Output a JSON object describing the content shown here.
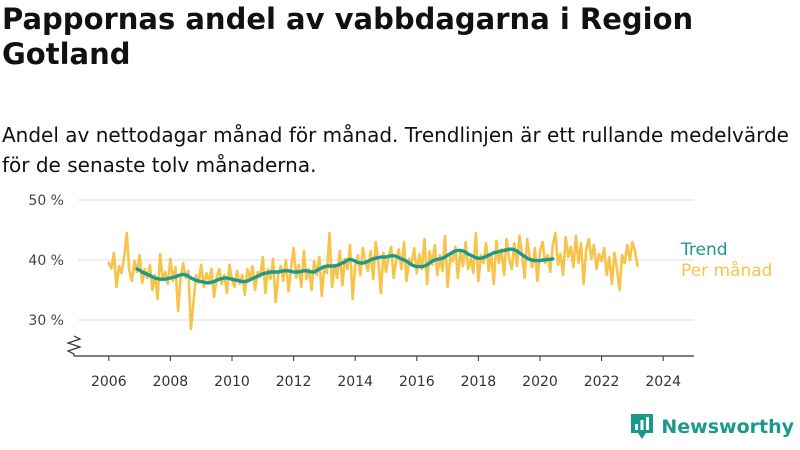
{
  "title": "Pappornas andel av vabbdagarna i Region Gotland",
  "subtitle": "Andel av nettodagar månad för månad. Trendlinjen är ett rullande medelvärde för de senaste tolv månaderna.",
  "brand": {
    "name": "Newsworthy",
    "logo_icon": "bar-chart-pin-icon",
    "color": "#1a9a8c"
  },
  "colors": {
    "monthly": "#f8c34a",
    "trend": "#1a9a8c",
    "grid": "#dddddd",
    "axis": "#333333"
  },
  "chart_data": {
    "type": "line",
    "title": "Pappornas andel av vabbdagarna i Region Gotland",
    "ylabel": "",
    "xlabel": "",
    "ylim": [
      24,
      52
    ],
    "xlim": [
      2005.0,
      2025.0
    ],
    "yticks": [
      30,
      40,
      50
    ],
    "ytick_labels": [
      "30 %",
      "40 %",
      "50 %"
    ],
    "xticks": [
      2006,
      2008,
      2010,
      2012,
      2014,
      2016,
      2018,
      2020,
      2022,
      2024
    ],
    "xtick_labels": [
      "2006",
      "2008",
      "2010",
      "2012",
      "2014",
      "2016",
      "2018",
      "2020",
      "2022",
      "2024"
    ],
    "grid": true,
    "broken_axis": true,
    "series": [
      {
        "name": "Per månad",
        "x_start": 2006.0,
        "step": 0.0833333,
        "values": [
          39.5,
          38.6,
          41.2,
          35.5,
          39.0,
          37.8,
          40.5,
          44.5,
          38.2,
          36.5,
          39.8,
          38.0,
          40.8,
          36.2,
          38.5,
          37.0,
          39.2,
          35.0,
          37.5,
          33.5,
          41.0,
          36.8,
          38.0,
          36.0,
          40.2,
          36.5,
          38.8,
          31.5,
          37.2,
          39.5,
          37.0,
          38.2,
          28.5,
          33.0,
          37.5,
          36.2,
          39.2,
          35.5,
          37.8,
          36.5,
          38.5,
          33.8,
          37.0,
          38.5,
          36.0,
          37.5,
          34.5,
          39.2,
          36.8,
          35.5,
          38.2,
          36.0,
          37.5,
          34.2,
          38.5,
          36.8,
          39.0,
          35.0,
          38.0,
          37.2,
          40.5,
          34.5,
          38.5,
          36.8,
          40.2,
          33.0,
          37.5,
          39.0,
          36.5,
          40.0,
          34.8,
          38.5,
          42.0,
          37.0,
          39.2,
          35.5,
          41.5,
          36.8,
          38.5,
          35.0,
          39.8,
          37.5,
          40.5,
          34.0,
          39.0,
          37.8,
          44.5,
          35.5,
          39.2,
          37.0,
          41.5,
          35.8,
          40.2,
          38.5,
          42.5,
          33.5,
          39.0,
          40.8,
          37.5,
          42.0,
          39.5,
          38.2,
          41.5,
          36.8,
          43.0,
          39.8,
          34.5,
          41.2,
          38.0,
          40.5,
          42.2,
          37.0,
          40.0,
          41.8,
          38.5,
          43.0,
          36.5,
          40.2,
          39.5,
          42.0,
          37.8,
          41.0,
          38.5,
          43.5,
          36.0,
          41.5,
          39.2,
          42.5,
          37.5,
          40.8,
          38.2,
          44.0,
          35.5,
          40.5,
          39.8,
          42.2,
          37.0,
          41.5,
          39.0,
          43.0,
          38.5,
          40.2,
          37.8,
          44.5,
          36.5,
          40.8,
          39.5,
          42.8,
          38.2,
          41.0,
          36.0,
          43.2,
          39.5,
          41.8,
          37.5,
          43.5,
          40.2,
          38.5,
          42.8,
          39.0,
          44.0,
          41.0,
          37.0,
          43.5,
          40.5,
          38.8,
          42.0,
          36.5,
          41.5,
          43.0,
          39.5,
          40.8,
          38.0,
          42.5,
          44.5,
          39.2,
          41.0,
          37.5,
          43.8,
          40.5,
          42.2,
          38.8,
          44.0,
          39.5,
          42.8,
          36.0,
          41.8,
          43.5,
          40.2,
          42.5,
          38.5,
          41.0,
          39.8,
          42.0,
          37.5,
          40.5,
          36.0,
          41.2,
          38.5,
          35.0,
          40.8,
          39.5,
          42.5,
          40.0,
          43.0,
          41.5,
          39.0
        ],
        "color": "#f8c34a"
      },
      {
        "name": "Trend",
        "x_start": 2006.9167,
        "step": 0.0833333,
        "values": [
          38.5,
          38.3,
          38.0,
          37.8,
          37.6,
          37.4,
          37.2,
          37.0,
          36.9,
          36.8,
          36.8,
          36.8,
          36.9,
          37.0,
          37.1,
          37.2,
          37.4,
          37.5,
          37.6,
          37.5,
          37.3,
          37.0,
          36.8,
          36.6,
          36.5,
          36.4,
          36.3,
          36.2,
          36.2,
          36.3,
          36.4,
          36.6,
          36.8,
          36.9,
          37.0,
          37.0,
          36.9,
          36.8,
          36.7,
          36.6,
          36.5,
          36.4,
          36.4,
          36.5,
          36.7,
          36.9,
          37.1,
          37.3,
          37.5,
          37.7,
          37.8,
          37.9,
          38.0,
          38.0,
          38.0,
          38.0,
          38.1,
          38.2,
          38.2,
          38.2,
          38.1,
          38.0,
          38.0,
          38.0,
          38.1,
          38.2,
          38.2,
          38.1,
          38.0,
          38.0,
          38.2,
          38.5,
          38.7,
          38.9,
          39.0,
          39.0,
          39.0,
          39.0,
          39.1,
          39.3,
          39.5,
          39.7,
          40.0,
          40.1,
          40.0,
          39.8,
          39.6,
          39.5,
          39.5,
          39.6,
          39.8,
          40.0,
          40.2,
          40.3,
          40.4,
          40.5,
          40.5,
          40.5,
          40.6,
          40.7,
          40.7,
          40.6,
          40.4,
          40.2,
          40.0,
          39.8,
          39.5,
          39.2,
          39.0,
          38.9,
          38.9,
          38.9,
          39.0,
          39.2,
          39.5,
          39.8,
          40.0,
          40.1,
          40.2,
          40.3,
          40.5,
          40.8,
          41.0,
          41.3,
          41.5,
          41.6,
          41.6,
          41.5,
          41.3,
          41.0,
          40.8,
          40.6,
          40.4,
          40.3,
          40.3,
          40.4,
          40.6,
          40.8,
          41.0,
          41.2,
          41.3,
          41.4,
          41.5,
          41.6,
          41.7,
          41.8,
          41.8,
          41.7,
          41.5,
          41.2,
          40.9,
          40.6,
          40.3,
          40.1,
          40.0,
          39.9,
          39.9,
          39.9,
          40.0,
          40.0,
          40.1,
          40.1,
          40.2
        ],
        "color": "#1a9a8c"
      }
    ],
    "legend": [
      {
        "name": "Trend",
        "color": "#1a9a8c"
      },
      {
        "name": "Per månad",
        "color": "#f8c34a"
      }
    ]
  }
}
